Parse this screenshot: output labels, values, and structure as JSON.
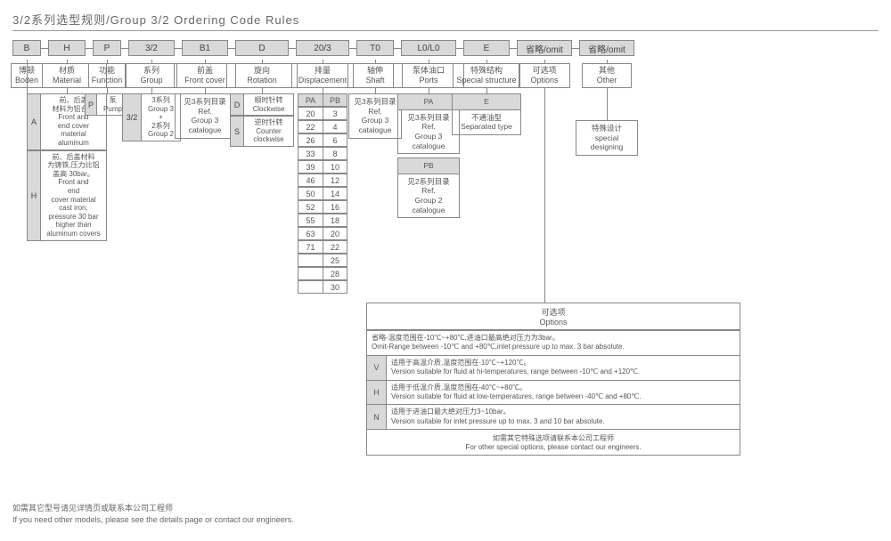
{
  "title": "3/2系列选型规则/Group 3/2 Ordering Code Rules",
  "codes": [
    "B",
    "H",
    "P",
    "3/2",
    "B1",
    "D",
    "20/3",
    "T0",
    "L0/L0",
    "E",
    "省略/omit",
    "省略/omit"
  ],
  "widths_code": [
    32,
    42,
    32,
    52,
    52,
    60,
    60,
    42,
    62,
    52,
    62,
    62
  ],
  "labels": [
    {
      "cn": "博顿",
      "en": "Boden"
    },
    {
      "cn": "材质",
      "en": "Material"
    },
    {
      "cn": "功能",
      "en": "Function"
    },
    {
      "cn": "系列",
      "en": "Group"
    },
    {
      "cn": "前盖",
      "en": "Front cover"
    },
    {
      "cn": "旋向",
      "en": "Rotation"
    },
    {
      "cn": "排量",
      "en": "Displacement"
    },
    {
      "cn": "轴伸",
      "en": "Shaft"
    },
    {
      "cn": "泵体油口",
      "en": "Ports"
    },
    {
      "cn": "特殊结构",
      "en": "Special structure"
    },
    {
      "cn": "可选项",
      "en": "Options"
    },
    {
      "cn": "其他",
      "en": "Other"
    }
  ],
  "widths_label": [
    36,
    90,
    42,
    58,
    70,
    80,
    70,
    62,
    80,
    76,
    58,
    56
  ],
  "material": [
    {
      "code": "A",
      "txt": "前、后盖\n材料为铝合金\nFront and\nend cover\nmaterial\naluminum"
    },
    {
      "code": "H",
      "txt": "前、后盖材料\n为铸铁,压力比铝\n盖高 30bar。\nFront and\nend\ncover material\ncast iron,\npressure 30 bar\nhigher than\naluminum covers"
    }
  ],
  "function": {
    "code": "P",
    "txt": "泵\nPump"
  },
  "group": {
    "code": "3/2",
    "txt": "3系列\nGroup 3\n+\n2系列\nGroup 2"
  },
  "frontcover": "见3系列目录\nRef.\nGroup 3\ncatalogue",
  "rotation": [
    {
      "code": "D",
      "txt": "顺时针转\nClockwise"
    },
    {
      "code": "S",
      "txt": "逆时针转\nCounter\nclockwise"
    }
  ],
  "disp_header": [
    "PA",
    "PB"
  ],
  "disp_rows": [
    [
      "20",
      "3"
    ],
    [
      "22",
      "4"
    ],
    [
      "26",
      "6"
    ],
    [
      "33",
      "8"
    ],
    [
      "39",
      "10"
    ],
    [
      "46",
      "12"
    ],
    [
      "50",
      "14"
    ],
    [
      "52",
      "16"
    ],
    [
      "55",
      "18"
    ],
    [
      "63",
      "20"
    ],
    [
      "71",
      "22"
    ],
    [
      "",
      "25"
    ],
    [
      "",
      "28"
    ],
    [
      "",
      "30"
    ]
  ],
  "shaft": "见3系列目录\nRef.\nGroup 3\ncatalogue",
  "ports": [
    {
      "hdr": "PA",
      "txt": "见3系列目录\nRef.\nGroup 3\ncatalogue"
    },
    {
      "hdr": "PB",
      "txt": "见2系列目录\nRef.\nGroup 2\ncatalogue"
    }
  ],
  "special": {
    "hdr": "E",
    "txt": "不通油型\nSeparated type"
  },
  "other": "特殊设计\nspecial designing",
  "options_hdr": "可选项\nOptions",
  "options": [
    {
      "code": "",
      "txt": "省略-温度范围在-10℃~+80℃,进油口最高绝对压力为3bar。\nOmit-Range between -10℃ and +80℃,inlet pressure up to max. 3 bar absolute."
    },
    {
      "code": "V",
      "txt": "适用于高温介质,温度范围在-10℃~+120℃。\nVersion suitable for fluid at hi-temperatures, range between -10℃ and +120℃."
    },
    {
      "code": "H",
      "txt": "适用于低温介质,温度范围在-40℃~+80℃。\nVersion suitable for fluid at low-temperatures, range between -40℃ and +80℃."
    },
    {
      "code": "N",
      "txt": "适用于进油口最大绝对压力3~10bar。\nVersion suitable for inlet pressure up to max. 3 and 10 bar absolute."
    }
  ],
  "options_footer": "如需其它特殊选项请联系本公司工程师\nFor other special options, please contact our engineers.",
  "footnote": "如需其它型号请见详情页或联系本公司工程师\nIf you need other models, please see the details page or contact our engineers."
}
